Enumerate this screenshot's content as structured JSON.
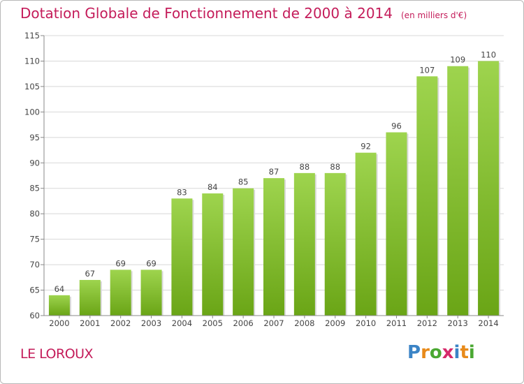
{
  "chart_data": {
    "type": "bar",
    "title": "Dotation Globale de Fonctionnement de 2000 à 2014",
    "subtitle": "(en milliers d'€)",
    "categories": [
      "2000",
      "2001",
      "2002",
      "2003",
      "2004",
      "2005",
      "2006",
      "2007",
      "2008",
      "2009",
      "2010",
      "2011",
      "2012",
      "2013",
      "2014"
    ],
    "values": [
      64,
      67,
      69,
      69,
      83,
      84,
      85,
      87,
      88,
      88,
      92,
      96,
      107,
      109,
      110
    ],
    "value_labels": [
      "64",
      "67",
      "69",
      "69",
      "83",
      "84",
      "85",
      "87",
      "88",
      "88",
      "92",
      "96",
      "107",
      "109",
      "110"
    ],
    "ylim": [
      60,
      115
    ],
    "yticks": [
      60,
      65,
      70,
      75,
      80,
      85,
      90,
      95,
      100,
      105,
      110,
      115
    ],
    "grid": true,
    "xlabel": "",
    "ylabel": "",
    "bar_color_top": "#9ed44e",
    "bar_color_bottom": "#6aa516"
  },
  "location": "LE LOROUX",
  "logo": {
    "text": "Proxiti",
    "letters": [
      {
        "char": "P",
        "color": "#3b84c6"
      },
      {
        "char": "r",
        "color": "#e88a1a"
      },
      {
        "char": "o",
        "color": "#4aa832"
      },
      {
        "char": "x",
        "color": "#d62a6a"
      },
      {
        "char": "i",
        "color": "#3b84c6"
      },
      {
        "char": "t",
        "color": "#e88a1a"
      },
      {
        "char": "i",
        "color": "#4aa832"
      }
    ]
  },
  "colors": {
    "accent": "#c41c5a",
    "grid": "#d8d8d8",
    "axis": "#888888",
    "text": "#444444"
  }
}
